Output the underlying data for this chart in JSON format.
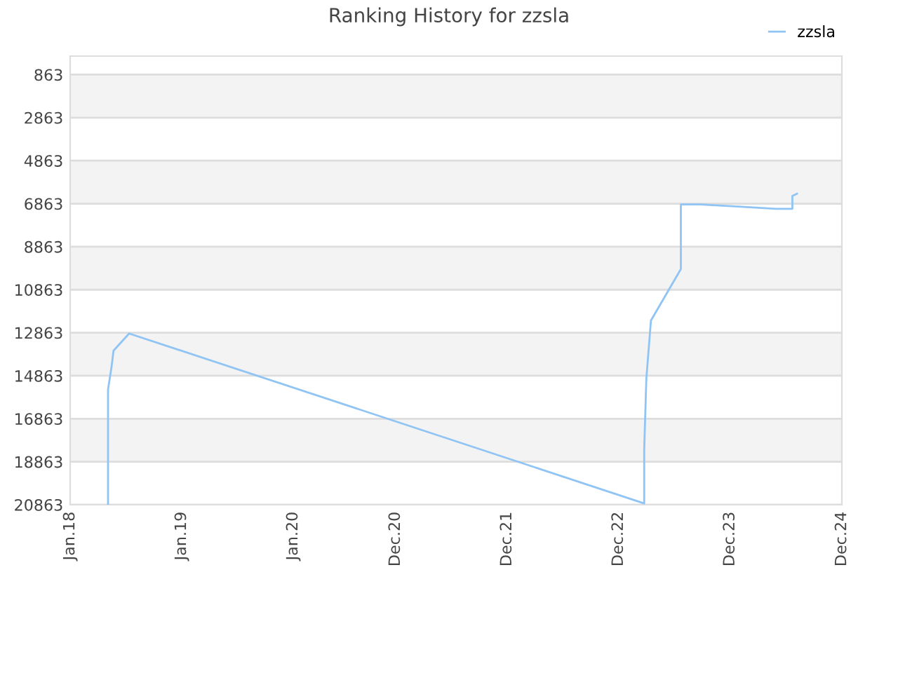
{
  "chart_data": {
    "type": "line",
    "title": "Ranking History for zzsla",
    "x": [
      "2018-05-05",
      "2018-05-05",
      "2018-05-16",
      "2018-05-23",
      "2018-07-13",
      "2023-02-23",
      "2023-02-23",
      "2023-03-02",
      "2023-03-17",
      "2023-06-23",
      "2023-06-23",
      "2023-08-28",
      "2023-12-27",
      "2024-04-29",
      "2024-06-22",
      "2024-06-22",
      "2024-07-07"
    ],
    "series": [
      {
        "name": "zzsla",
        "color": "#90c4f4",
        "values": [
          20863,
          15500,
          14500,
          13700,
          12900,
          20800,
          18300,
          15000,
          12300,
          9900,
          6900,
          6900,
          7000,
          7100,
          7100,
          6500,
          6400
        ]
      }
    ],
    "xlim": [
      "2018-01-01",
      "2024-12-01"
    ],
    "xticks": [
      {
        "value": "2018-01-01",
        "label": "Jan.18"
      },
      {
        "value": "2019-01-01",
        "label": "Jan.19"
      },
      {
        "value": "2020-01-01",
        "label": "Jan.20"
      },
      {
        "value": "2020-12-01",
        "label": "Dec.20"
      },
      {
        "value": "2021-12-01",
        "label": "Dec.21"
      },
      {
        "value": "2022-12-01",
        "label": "Dec.22"
      },
      {
        "value": "2023-12-01",
        "label": "Dec.23"
      },
      {
        "value": "2024-12-01",
        "label": "Dec.24"
      }
    ],
    "ylim": [
      20863,
      0
    ],
    "yticks": [
      863,
      2863,
      4863,
      6863,
      8863,
      10863,
      12863,
      14863,
      16863,
      18863,
      20863
    ],
    "bands": [
      {
        "axis": "y",
        "from": 863,
        "to": 2863,
        "color": "#f3f3f3"
      },
      {
        "axis": "y",
        "from": 4863,
        "to": 6863,
        "color": "#f3f3f3"
      },
      {
        "axis": "y",
        "from": 8863,
        "to": 10863,
        "color": "#f3f3f3"
      },
      {
        "axis": "y",
        "from": 12863,
        "to": 14863,
        "color": "#f3f3f3"
      },
      {
        "axis": "y",
        "from": 16863,
        "to": 18863,
        "color": "#f3f3f3"
      }
    ],
    "grid": "y",
    "legend": "top right",
    "marker": "none",
    "line_style": "solid"
  }
}
